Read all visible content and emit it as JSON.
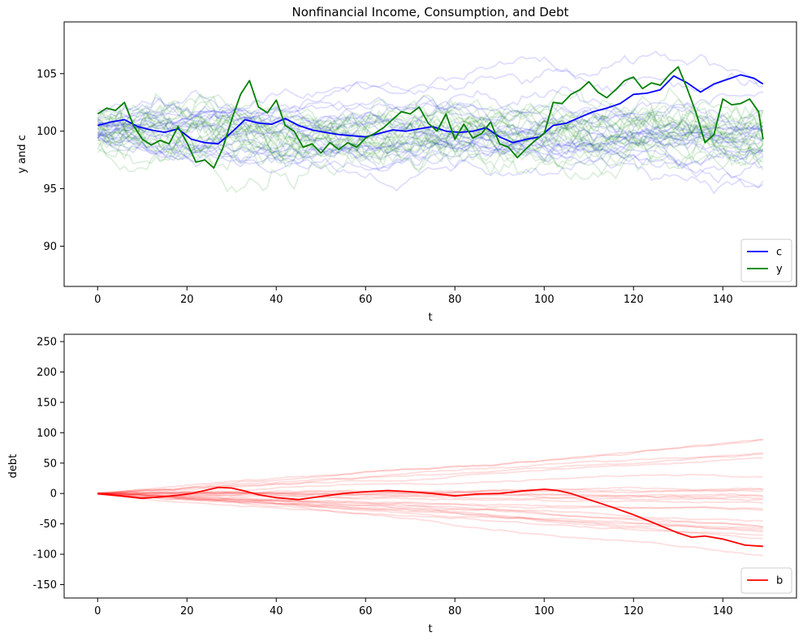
{
  "chart_data": [
    {
      "type": "line",
      "title": "Nonfinancial Income, Consumption, and Debt",
      "xlabel": "t",
      "ylabel": "y and c",
      "xlim": [
        -7.5,
        156.5
      ],
      "ylim": [
        86.5,
        109.5
      ],
      "xticks": [
        0,
        20,
        40,
        60,
        80,
        100,
        120,
        140
      ],
      "yticks": [
        90,
        95,
        100,
        105
      ],
      "legend": {
        "placement": "lower-right"
      },
      "colors": {
        "c": "#0000ff",
        "y": "#008000"
      },
      "series": [
        {
          "name": "c",
          "x": [
            0,
            3,
            6,
            9,
            12,
            15,
            18,
            21,
            24,
            27,
            30,
            33,
            36,
            39,
            42,
            45,
            48,
            51,
            54,
            57,
            60,
            63,
            66,
            69,
            72,
            75,
            78,
            81,
            84,
            87,
            90,
            93,
            96,
            99,
            102,
            105,
            108,
            111,
            114,
            117,
            120,
            123,
            126,
            129,
            132,
            135,
            138,
            141,
            144,
            147,
            149
          ],
          "values": [
            100.5,
            100.8,
            101.0,
            100.4,
            100.1,
            99.9,
            100.2,
            99.3,
            99.0,
            98.9,
            99.9,
            101.0,
            100.7,
            100.6,
            101.1,
            100.5,
            100.1,
            99.9,
            99.7,
            99.6,
            99.5,
            99.8,
            100.1,
            100.0,
            100.2,
            100.4,
            100.0,
            99.9,
            100.0,
            100.3,
            99.5,
            99.0,
            99.3,
            99.5,
            100.5,
            100.7,
            101.2,
            101.7,
            102.0,
            102.4,
            103.2,
            103.3,
            103.6,
            104.8,
            104.2,
            103.4,
            104.1,
            104.5,
            104.9,
            104.6,
            104.1
          ]
        },
        {
          "name": "y",
          "x": [
            0,
            2,
            4,
            6,
            8,
            10,
            12,
            14,
            16,
            18,
            20,
            22,
            24,
            26,
            28,
            30,
            32,
            34,
            36,
            38,
            40,
            42,
            44,
            46,
            48,
            50,
            52,
            54,
            56,
            58,
            60,
            62,
            64,
            66,
            68,
            70,
            72,
            74,
            76,
            78,
            80,
            82,
            84,
            86,
            88,
            90,
            92,
            94,
            96,
            98,
            100,
            102,
            104,
            106,
            108,
            110,
            112,
            114,
            116,
            118,
            120,
            122,
            124,
            126,
            128,
            130,
            132,
            134,
            136,
            138,
            140,
            142,
            144,
            146,
            148,
            149
          ],
          "values": [
            101.5,
            102.0,
            101.8,
            102.5,
            100.5,
            99.3,
            98.8,
            99.2,
            98.9,
            100.4,
            99.0,
            97.3,
            97.5,
            96.8,
            98.5,
            101.0,
            103.2,
            104.4,
            102.1,
            101.6,
            102.7,
            100.5,
            100.0,
            98.6,
            98.9,
            98.1,
            99.0,
            98.4,
            99.0,
            98.6,
            99.4,
            99.8,
            100.3,
            101.0,
            101.7,
            101.5,
            102.1,
            100.7,
            100.0,
            101.5,
            99.3,
            100.6,
            99.4,
            99.8,
            100.8,
            98.9,
            98.6,
            97.7,
            98.5,
            99.2,
            99.8,
            102.5,
            102.4,
            103.2,
            103.6,
            104.3,
            103.4,
            102.9,
            103.6,
            104.4,
            104.7,
            103.7,
            104.2,
            104.0,
            104.9,
            105.6,
            103.7,
            101.6,
            99.0,
            99.7,
            102.8,
            102.3,
            102.4,
            102.8,
            101.7,
            99.3
          ]
        }
      ]
    },
    {
      "type": "line",
      "title": "",
      "xlabel": "t",
      "ylabel": "debt",
      "xlim": [
        -7.5,
        156.5
      ],
      "ylim": [
        -172,
        262
      ],
      "xticks": [
        0,
        20,
        40,
        60,
        80,
        100,
        120,
        140
      ],
      "yticks": [
        -150,
        -100,
        -50,
        0,
        50,
        100,
        150,
        200,
        250
      ],
      "legend": {
        "placement": "lower-right"
      },
      "colors": {
        "b": "#ff0000"
      },
      "series": [
        {
          "name": "b",
          "x": [
            0,
            5,
            10,
            15,
            18,
            21,
            24,
            27,
            30,
            33,
            36,
            40,
            45,
            50,
            55,
            60,
            65,
            70,
            75,
            80,
            85,
            90,
            95,
            100,
            103,
            106,
            110,
            115,
            120,
            125,
            130,
            133,
            136,
            140,
            145,
            149
          ],
          "values": [
            0,
            -4,
            -8,
            -5,
            -3,
            0,
            5,
            10,
            9,
            4,
            -2,
            -7,
            -10,
            -5,
            0,
            3,
            5,
            3,
            0,
            -4,
            -1,
            0,
            4,
            7,
            5,
            0,
            -10,
            -22,
            -35,
            -50,
            -65,
            -72,
            -70,
            -75,
            -85,
            -87
          ]
        }
      ]
    }
  ]
}
